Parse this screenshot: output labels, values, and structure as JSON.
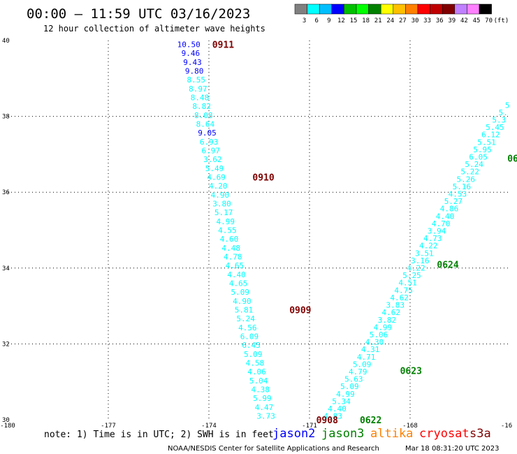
{
  "header": {
    "title": "00:00 — 11:59 UTC 03/16/2023",
    "subtitle": "12 hour collection of altimeter wave heights"
  },
  "colorbar": {
    "colors": [
      "#808080",
      "#00ffff",
      "#00bfff",
      "#0000ff",
      "#00c000",
      "#00ff00",
      "#008000",
      "#ffff00",
      "#ffc000",
      "#ff8000",
      "#ff0000",
      "#c00000",
      "#800000",
      "#c080ff",
      "#ff80ff",
      "#000000"
    ],
    "labels": [
      "3",
      "6",
      "9",
      "12",
      "15",
      "18",
      "21",
      "24",
      "27",
      "30",
      "33",
      "36",
      "39",
      "42",
      "45",
      "70"
    ],
    "unit": "(ft)"
  },
  "axes": {
    "x_ticks": [
      "-180",
      "-177",
      "-174",
      "-171",
      "-168",
      "-16"
    ],
    "y_ticks": [
      "40",
      "38",
      "36",
      "34",
      "32",
      "30"
    ]
  },
  "chart_data": {
    "type": "scatter",
    "xlim": [
      -180,
      -165
    ],
    "ylim": [
      30,
      40
    ],
    "tracks": [
      {
        "color_hint": "descending track",
        "points": [
          {
            "value": "10.50",
            "color": "#0000ff"
          },
          {
            "value": "9.46",
            "color": "#0000ff"
          },
          {
            "value": "9.43",
            "color": "#0000ff"
          },
          {
            "value": "9.80",
            "color": "#0000ff"
          },
          {
            "value": "8.55",
            "color": "#00ffff"
          },
          {
            "value": "8.97",
            "color": "#00ffff"
          },
          {
            "value": "8.48",
            "color": "#00ffff"
          },
          {
            "value": "8.82",
            "color": "#00ffff"
          },
          {
            "value": "8.08",
            "color": "#00ffff"
          },
          {
            "value": "8.64",
            "color": "#00ffff"
          },
          {
            "value": "9.05",
            "color": "#0000ff"
          },
          {
            "value": "6.93",
            "color": "#00ffff"
          },
          {
            "value": "6.97",
            "color": "#00ffff"
          },
          {
            "value": "3.62",
            "color": "#00ffff"
          },
          {
            "value": "5.49",
            "color": "#00ffff"
          },
          {
            "value": "4.69",
            "color": "#00ffff"
          },
          {
            "value": "4.20",
            "color": "#00ffff"
          },
          {
            "value": "4.90",
            "color": "#00ffff"
          },
          {
            "value": "3.80",
            "color": "#00ffff"
          },
          {
            "value": "5.17",
            "color": "#00ffff"
          },
          {
            "value": "4.99",
            "color": "#00ffff"
          },
          {
            "value": "4.55",
            "color": "#00ffff"
          },
          {
            "value": "4.60",
            "color": "#00ffff"
          },
          {
            "value": "4.48",
            "color": "#00ffff"
          },
          {
            "value": "4.78",
            "color": "#00ffff"
          },
          {
            "value": "4.65",
            "color": "#00ffff"
          },
          {
            "value": "4.40",
            "color": "#00ffff"
          },
          {
            "value": "4.65",
            "color": "#00ffff"
          },
          {
            "value": "5.09",
            "color": "#00ffff"
          },
          {
            "value": "4.90",
            "color": "#00ffff"
          },
          {
            "value": "5.81",
            "color": "#00ffff"
          },
          {
            "value": "5.24",
            "color": "#00ffff"
          },
          {
            "value": "4.56",
            "color": "#00ffff"
          },
          {
            "value": "6.09",
            "color": "#00ffff"
          },
          {
            "value": "6.45",
            "color": "#00ffff"
          },
          {
            "value": "5.09",
            "color": "#00ffff"
          },
          {
            "value": "4.58",
            "color": "#00ffff"
          },
          {
            "value": "4.06",
            "color": "#00ffff"
          },
          {
            "value": "5.04",
            "color": "#00ffff"
          },
          {
            "value": "4.38",
            "color": "#00ffff"
          },
          {
            "value": "5.99",
            "color": "#00ffff"
          },
          {
            "value": "4.47",
            "color": "#00ffff"
          },
          {
            "value": "3.73",
            "color": "#00ffff"
          }
        ],
        "start": [
          -174.6,
          39.9
        ],
        "end": [
          -172.3,
          30.1
        ],
        "times": [
          {
            "label": "0911",
            "lon": -173.9,
            "lat": 39.9,
            "color": "#800000"
          },
          {
            "label": "0910",
            "lon": -172.7,
            "lat": 36.4,
            "color": "#800000"
          },
          {
            "label": "0909",
            "lon": -171.6,
            "lat": 32.9,
            "color": "#800000"
          },
          {
            "label": "0908",
            "lon": -170.8,
            "lat": 30.0,
            "color": "#800000"
          }
        ]
      },
      {
        "color_hint": "ascending track",
        "points": [
          {
            "value": "4.83",
            "color": "#00ffff"
          },
          {
            "value": "4.40",
            "color": "#00ffff"
          },
          {
            "value": "5.34",
            "color": "#00ffff"
          },
          {
            "value": "4.99",
            "color": "#00ffff"
          },
          {
            "value": "5.09",
            "color": "#00ffff"
          },
          {
            "value": "5.63",
            "color": "#00ffff"
          },
          {
            "value": "4.79",
            "color": "#00ffff"
          },
          {
            "value": "5.09",
            "color": "#00ffff"
          },
          {
            "value": "4.71",
            "color": "#00ffff"
          },
          {
            "value": "4.31",
            "color": "#00ffff"
          },
          {
            "value": "4.30",
            "color": "#00ffff"
          },
          {
            "value": "5.06",
            "color": "#00ffff"
          },
          {
            "value": "4.99",
            "color": "#00ffff"
          },
          {
            "value": "3.82",
            "color": "#00ffff"
          },
          {
            "value": "4.62",
            "color": "#00ffff"
          },
          {
            "value": "3.83",
            "color": "#00ffff"
          },
          {
            "value": "4.62",
            "color": "#00ffff"
          },
          {
            "value": "4.75",
            "color": "#00ffff"
          },
          {
            "value": "4.51",
            "color": "#00ffff"
          },
          {
            "value": "5.25",
            "color": "#00ffff"
          },
          {
            "value": "4.22",
            "color": "#00ffff"
          },
          {
            "value": "3.16",
            "color": "#00ffff"
          },
          {
            "value": "3.51",
            "color": "#00ffff"
          },
          {
            "value": "4.22",
            "color": "#00ffff"
          },
          {
            "value": "4.73",
            "color": "#00ffff"
          },
          {
            "value": "3.94",
            "color": "#00ffff"
          },
          {
            "value": "4.70",
            "color": "#00ffff"
          },
          {
            "value": "4.40",
            "color": "#00ffff"
          },
          {
            "value": "4.86",
            "color": "#00ffff"
          },
          {
            "value": "5.27",
            "color": "#00ffff"
          },
          {
            "value": "4.53",
            "color": "#00ffff"
          },
          {
            "value": "5.16",
            "color": "#00ffff"
          },
          {
            "value": "5.26",
            "color": "#00ffff"
          },
          {
            "value": "5.22",
            "color": "#00ffff"
          },
          {
            "value": "5.24",
            "color": "#00ffff"
          },
          {
            "value": "6.05",
            "color": "#00ffff"
          },
          {
            "value": "5.95",
            "color": "#00ffff"
          },
          {
            "value": "5.51",
            "color": "#00ffff"
          },
          {
            "value": "6.12",
            "color": "#00ffff"
          },
          {
            "value": "5.45",
            "color": "#00ffff"
          },
          {
            "value": "5.3",
            "color": "#00ffff"
          },
          {
            "value": "5.",
            "color": "#00ffff"
          },
          {
            "value": "5",
            "color": "#00ffff"
          }
        ],
        "start": [
          -170.3,
          30.1
        ],
        "end": [
          -165.1,
          38.3
        ],
        "times": [
          {
            "label": "0622",
            "lon": -169.5,
            "lat": 30.0,
            "color": "#008000"
          },
          {
            "label": "0623",
            "lon": -168.3,
            "lat": 31.3,
            "color": "#008000"
          },
          {
            "label": "0624",
            "lon": -167.2,
            "lat": 34.1,
            "color": "#008000"
          },
          {
            "label": "06",
            "lon": -165.1,
            "lat": 36.9,
            "color": "#008000"
          }
        ]
      }
    ]
  },
  "legend": {
    "note": "note: 1) Time is in UTC; 2) SWH is in feet",
    "satellites": [
      {
        "name": "jason2",
        "color": "#0000ff"
      },
      {
        "name": "jason3",
        "color": "#008000"
      },
      {
        "name": "altika",
        "color": "#ff8000"
      },
      {
        "name": "cryosat",
        "color": "#ff0000"
      },
      {
        "name": "s3a",
        "color": "#800000"
      }
    ]
  },
  "footer": {
    "source": "NOAA/NESDIS Center for Satellite Applications and Research",
    "timestamp": "Mar 18 08:31:20 UTC 2023"
  }
}
